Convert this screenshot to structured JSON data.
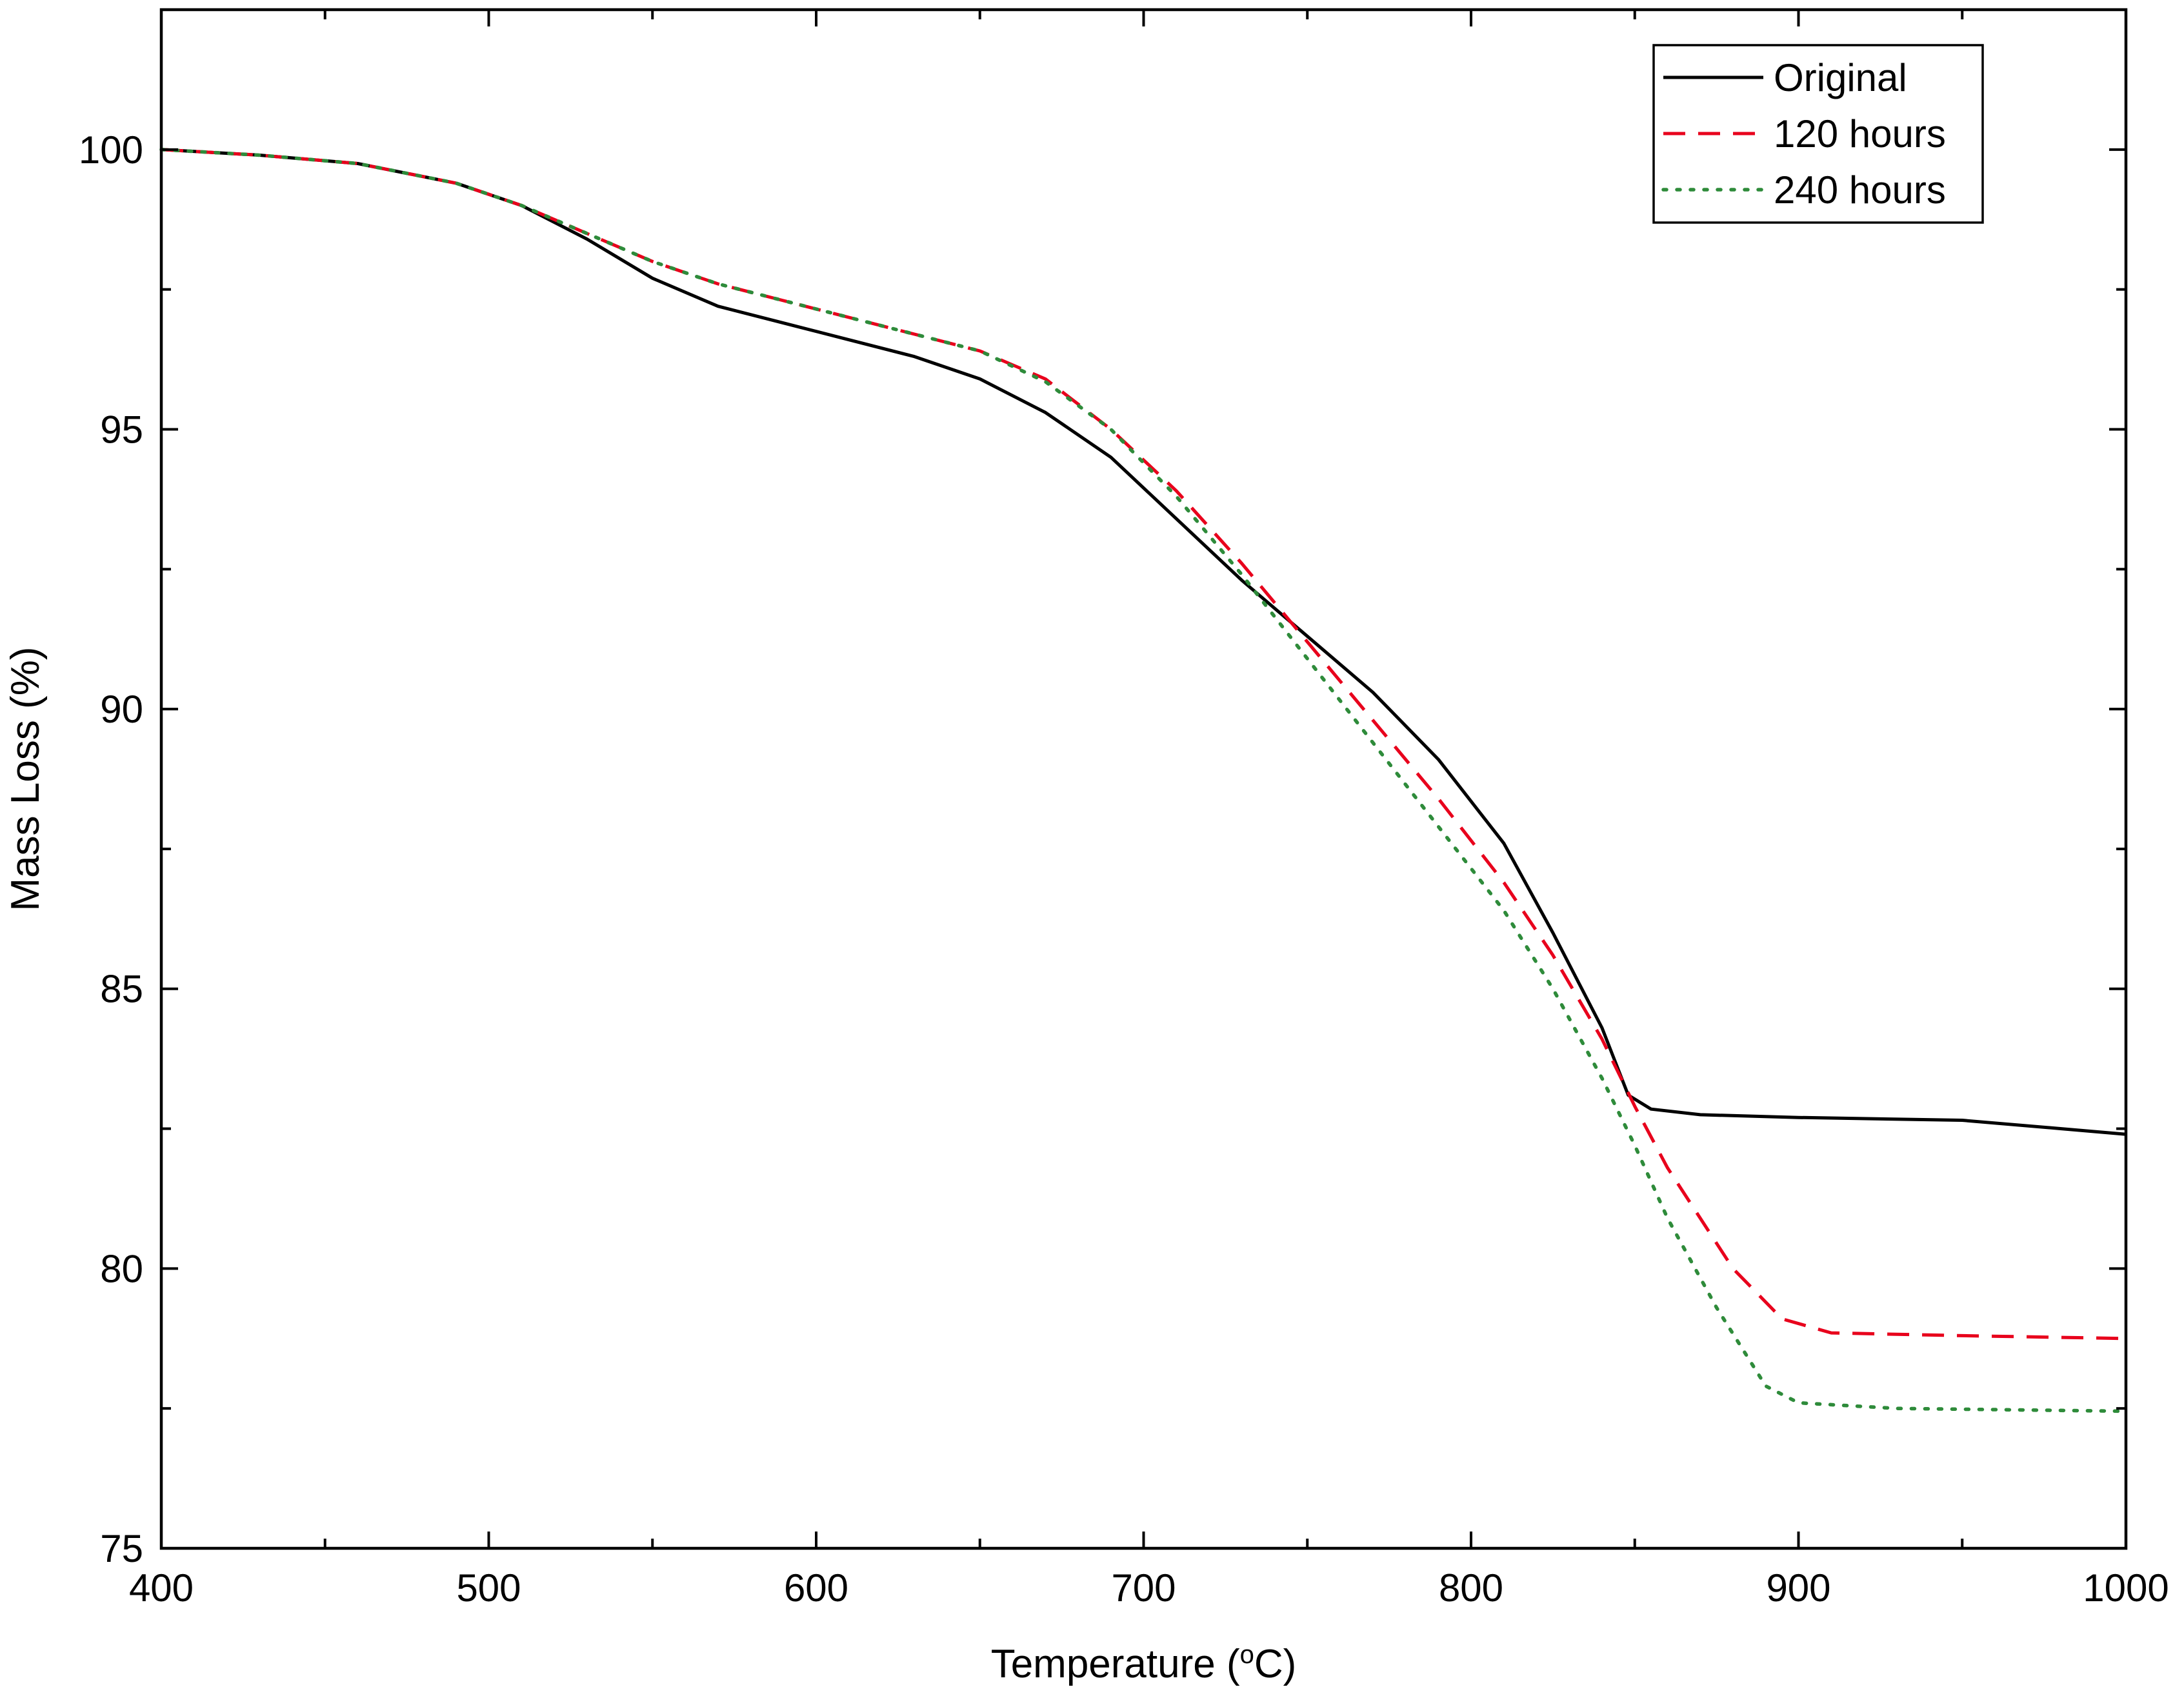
{
  "chart_data": {
    "type": "line",
    "title": "",
    "xlabel": "Temperature (",
    "xlabel_sup": "o",
    "xlabel_end": "C)",
    "ylabel": "Mass Loss (%)",
    "xlim": [
      400,
      1000
    ],
    "ylim": [
      75,
      102.5
    ],
    "xticks": [
      400,
      500,
      600,
      700,
      800,
      900,
      1000
    ],
    "yticks": [
      75,
      80,
      85,
      90,
      95,
      100
    ],
    "legend_position": "top-right",
    "series": [
      {
        "name": "Original",
        "color": "#000000",
        "style": "solid",
        "points": [
          [
            400,
            100.0
          ],
          [
            430,
            99.9
          ],
          [
            460,
            99.75
          ],
          [
            490,
            99.4
          ],
          [
            510,
            99.0
          ],
          [
            530,
            98.4
          ],
          [
            550,
            97.7
          ],
          [
            570,
            97.2
          ],
          [
            590,
            96.9
          ],
          [
            610,
            96.6
          ],
          [
            630,
            96.3
          ],
          [
            650,
            95.9
          ],
          [
            670,
            95.3
          ],
          [
            690,
            94.5
          ],
          [
            710,
            93.4
          ],
          [
            730,
            92.3
          ],
          [
            750,
            91.3
          ],
          [
            770,
            90.3
          ],
          [
            790,
            89.1
          ],
          [
            810,
            87.6
          ],
          [
            825,
            86.0
          ],
          [
            840,
            84.3
          ],
          [
            848,
            83.1
          ],
          [
            855,
            82.85
          ],
          [
            870,
            82.75
          ],
          [
            900,
            82.7
          ],
          [
            950,
            82.65
          ],
          [
            980,
            82.5
          ],
          [
            1000,
            82.4
          ]
        ]
      },
      {
        "name": "120 hours",
        "color": "#e8001c",
        "style": "dashed",
        "points": [
          [
            400,
            100.0
          ],
          [
            430,
            99.9
          ],
          [
            460,
            99.75
          ],
          [
            490,
            99.4
          ],
          [
            510,
            99.0
          ],
          [
            530,
            98.5
          ],
          [
            550,
            98.0
          ],
          [
            570,
            97.6
          ],
          [
            590,
            97.3
          ],
          [
            610,
            97.0
          ],
          [
            630,
            96.7
          ],
          [
            650,
            96.4
          ],
          [
            670,
            95.9
          ],
          [
            690,
            95.0
          ],
          [
            710,
            93.9
          ],
          [
            730,
            92.6
          ],
          [
            750,
            91.2
          ],
          [
            770,
            89.8
          ],
          [
            790,
            88.4
          ],
          [
            810,
            86.9
          ],
          [
            825,
            85.6
          ],
          [
            840,
            84.1
          ],
          [
            850,
            82.9
          ],
          [
            860,
            81.8
          ],
          [
            880,
            80.0
          ],
          [
            895,
            79.1
          ],
          [
            910,
            78.85
          ],
          [
            950,
            78.8
          ],
          [
            1000,
            78.75
          ]
        ]
      },
      {
        "name": "240 hours",
        "color": "#2e8b3a",
        "style": "dotted",
        "points": [
          [
            400,
            100.0
          ],
          [
            430,
            99.9
          ],
          [
            460,
            99.75
          ],
          [
            490,
            99.4
          ],
          [
            510,
            99.0
          ],
          [
            530,
            98.5
          ],
          [
            550,
            98.0
          ],
          [
            570,
            97.6
          ],
          [
            590,
            97.3
          ],
          [
            610,
            97.0
          ],
          [
            630,
            96.7
          ],
          [
            650,
            96.4
          ],
          [
            670,
            95.85
          ],
          [
            690,
            95.0
          ],
          [
            710,
            93.8
          ],
          [
            730,
            92.4
          ],
          [
            750,
            90.9
          ],
          [
            770,
            89.4
          ],
          [
            790,
            87.9
          ],
          [
            810,
            86.4
          ],
          [
            825,
            85.0
          ],
          [
            840,
            83.4
          ],
          [
            850,
            82.2
          ],
          [
            860,
            80.9
          ],
          [
            875,
            79.3
          ],
          [
            890,
            77.9
          ],
          [
            900,
            77.6
          ],
          [
            930,
            77.5
          ],
          [
            1000,
            77.45
          ]
        ]
      }
    ]
  }
}
